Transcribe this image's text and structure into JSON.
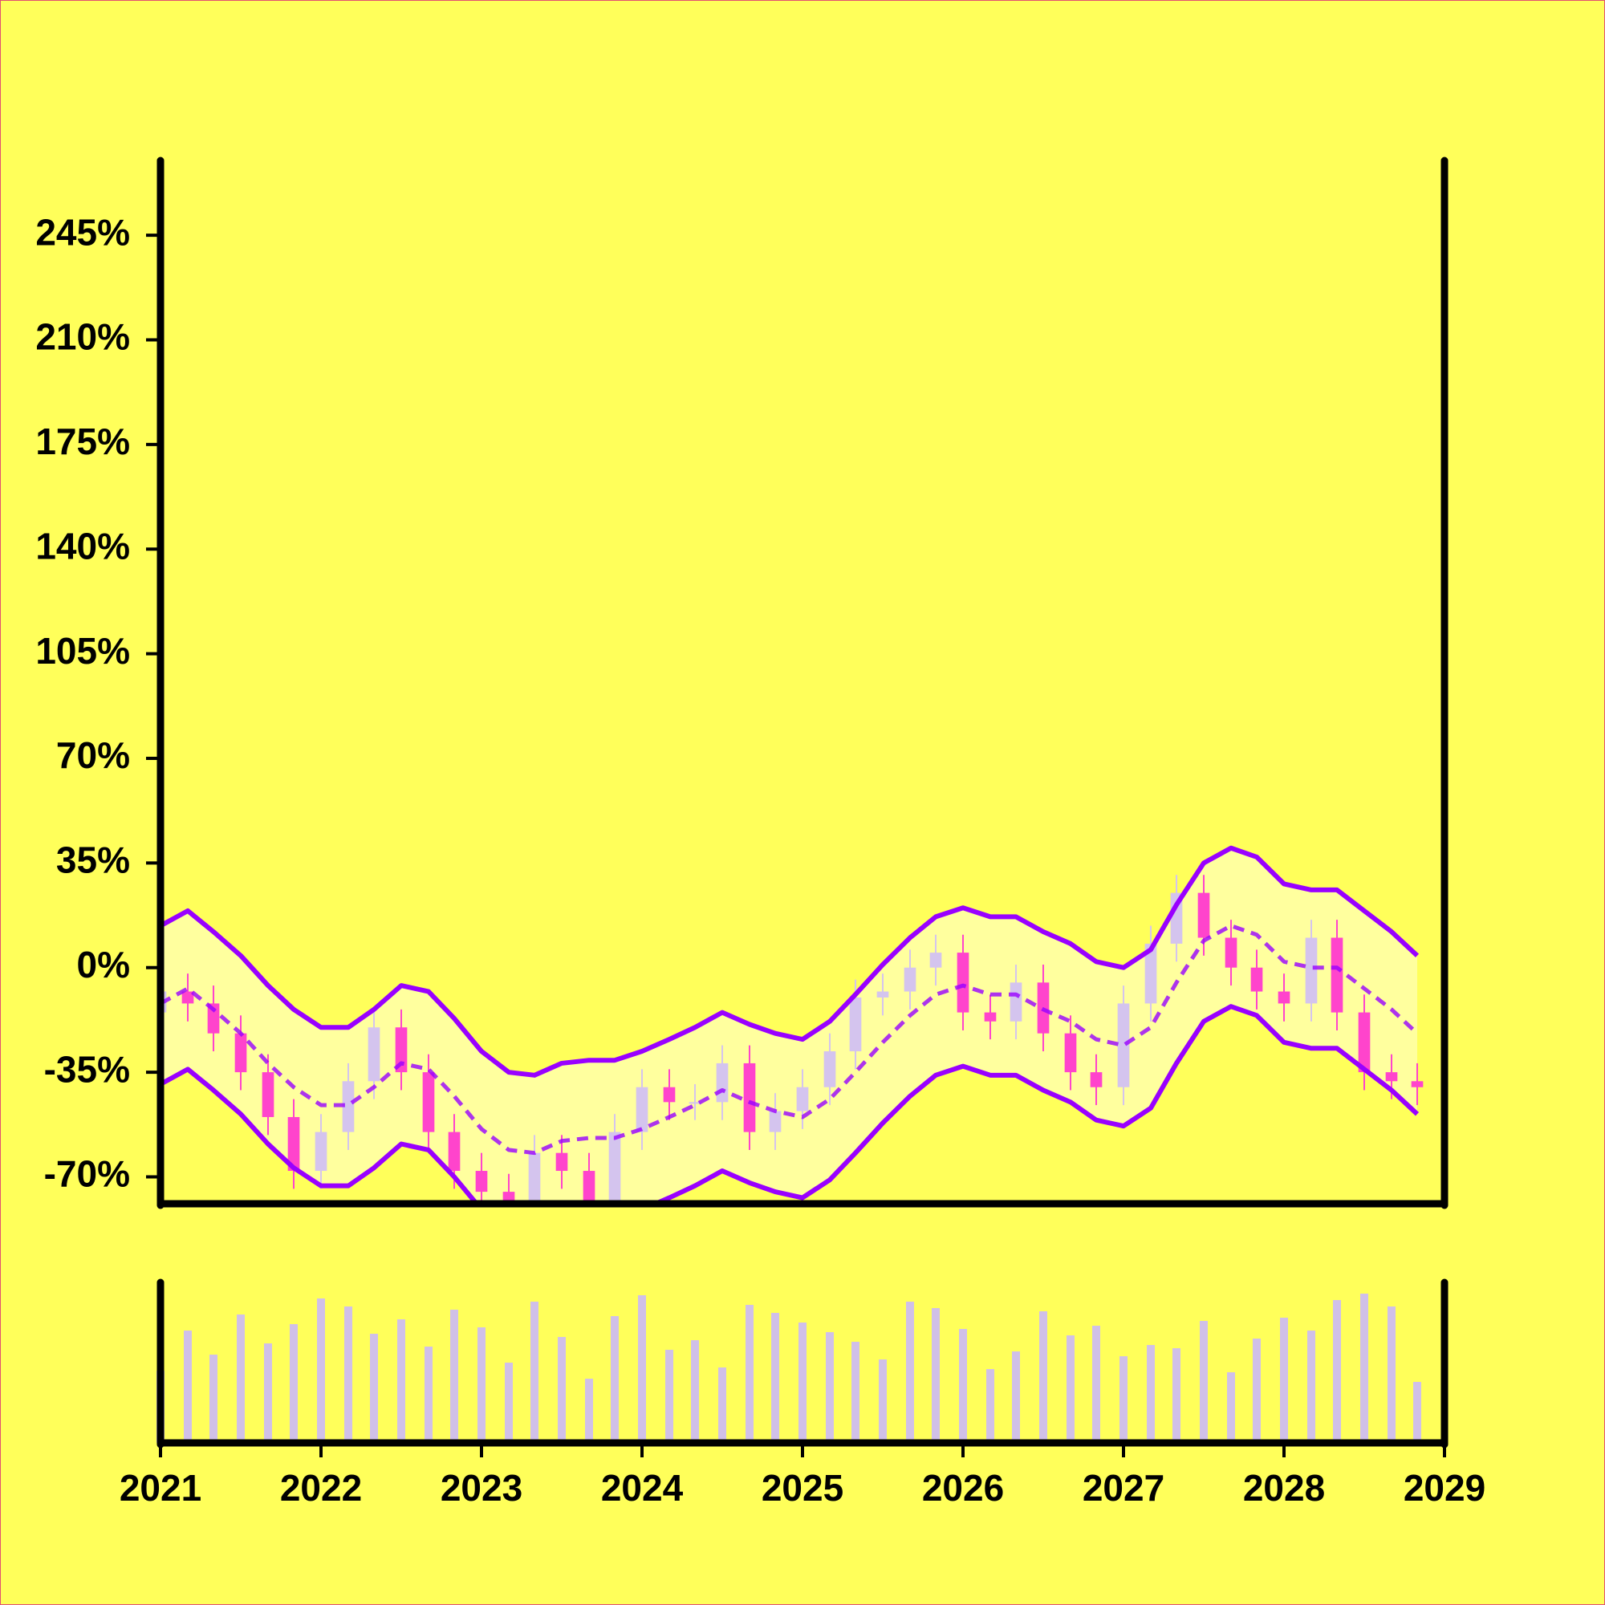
{
  "chart_data": {
    "type": "candlestick",
    "x": [
      2021,
      2021.17,
      2021.33,
      2021.5,
      2021.67,
      2021.83,
      2022,
      2022.17,
      2022.33,
      2022.5,
      2022.67,
      2022.83,
      2023,
      2023.17,
      2023.33,
      2023.5,
      2023.67,
      2023.83,
      2024,
      2024.17,
      2024.33,
      2024.5,
      2024.67,
      2024.83,
      2025,
      2025.17,
      2025.33,
      2025.5,
      2025.67,
      2025.83,
      2026,
      2026.17,
      2026.33,
      2026.5,
      2026.67,
      2026.83,
      2027,
      2027.17,
      2027.33,
      2027.5,
      2027.67,
      2027.83,
      2028,
      2028.17,
      2028.33,
      2028.5,
      2028.67,
      2028.83
    ],
    "open": [
      -15,
      -8,
      -12,
      -22,
      -35,
      -50,
      -68,
      -55,
      -38,
      -20,
      -35,
      -55,
      -68,
      -75,
      -82,
      -62,
      -68,
      -78,
      -55,
      -40,
      -45,
      -45,
      -32,
      -55,
      -48,
      -40,
      -28,
      -10,
      -8,
      0,
      5,
      -15,
      -18,
      -5,
      -22,
      -35,
      -40,
      -12,
      8,
      25,
      10,
      0,
      -8,
      -12,
      10,
      -15,
      -35,
      -38
    ],
    "high": [
      -2,
      -2,
      -6,
      -16,
      -29,
      -44,
      -49,
      -32,
      -14,
      -14,
      -29,
      -49,
      -62,
      -69,
      -56,
      -56,
      -62,
      -49,
      -34,
      -34,
      -39,
      -26,
      -26,
      -42,
      -34,
      -22,
      -4,
      -2,
      6,
      11,
      11,
      -9,
      1,
      1,
      -16,
      -29,
      -6,
      14,
      31,
      31,
      16,
      6,
      -2,
      16,
      16,
      -9,
      -29,
      -32
    ],
    "low": [
      -21,
      -18,
      -28,
      -41,
      -56,
      -74,
      -74,
      -61,
      -44,
      -41,
      -61,
      -74,
      -81,
      -88,
      -88,
      -74,
      -84,
      -84,
      -61,
      -51,
      -51,
      -51,
      -61,
      -61,
      -54,
      -46,
      -34,
      -16,
      -14,
      -6,
      -21,
      -24,
      -24,
      -28,
      -41,
      -46,
      -46,
      -18,
      2,
      4,
      -6,
      -14,
      -18,
      -18,
      -21,
      -41,
      -44,
      -46
    ],
    "close": [
      -8,
      -12,
      -22,
      -35,
      -50,
      -68,
      -55,
      -38,
      -20,
      -35,
      -55,
      -68,
      -75,
      -82,
      -62,
      -68,
      -78,
      -55,
      -40,
      -45,
      -45,
      -32,
      -55,
      -48,
      -40,
      -28,
      -10,
      -8,
      0,
      5,
      -15,
      -18,
      -5,
      -22,
      -35,
      -40,
      -12,
      8,
      25,
      10,
      0,
      -8,
      -12,
      10,
      -15,
      -35,
      -38,
      -40
    ],
    "volume": [
      45,
      70,
      55,
      80,
      62,
      74,
      90,
      85,
      68,
      77,
      60,
      83,
      72,
      50,
      88,
      66,
      40,
      79,
      92,
      58,
      64,
      47,
      86,
      81,
      75,
      69,
      63,
      52,
      88,
      84,
      71,
      46,
      57,
      82,
      67,
      73,
      54,
      61,
      59,
      76,
      44,
      65,
      78,
      70,
      89,
      93,
      85,
      38
    ],
    "bands": {
      "color": "#9900ff",
      "fill": "#ffff9e",
      "upper": [
        14,
        19,
        12,
        4,
        -6,
        -14,
        -20,
        -20,
        -14,
        -6,
        -8,
        -17,
        -28,
        -35,
        -36,
        -32,
        -31,
        -31,
        -28,
        -24,
        -20,
        -15,
        -19,
        -22,
        -24,
        -18,
        -9,
        1,
        10,
        17,
        20,
        17,
        17,
        12,
        8,
        2,
        0,
        6,
        21,
        35,
        40,
        37,
        28,
        26,
        26,
        19,
        12,
        4
      ],
      "middle": [
        -12,
        -7,
        -14,
        -22,
        -32,
        -40,
        -46,
        -46,
        -40,
        -32,
        -34,
        -43,
        -54,
        -61,
        -62,
        -58,
        -57,
        -57,
        -54,
        -50,
        -46,
        -41,
        -45,
        -48,
        -50,
        -44,
        -35,
        -25,
        -16,
        -9,
        -6,
        -9,
        -9,
        -14,
        -18,
        -24,
        -26,
        -20,
        -5,
        9,
        14,
        11,
        2,
        0,
        0,
        -7,
        -14,
        -22
      ],
      "lower": [
        -39,
        -34,
        -41,
        -49,
        -59,
        -67,
        -73,
        -73,
        -67,
        -59,
        -61,
        -70,
        -81,
        -88,
        -89,
        -85,
        -84,
        -84,
        -81,
        -77,
        -73,
        -68,
        -72,
        -75,
        -77,
        -71,
        -62,
        -52,
        -43,
        -36,
        -33,
        -36,
        -36,
        -41,
        -45,
        -51,
        -53,
        -47,
        -32,
        -18,
        -13,
        -16,
        -25,
        -27,
        -27,
        -34,
        -41,
        -49
      ]
    },
    "up_color": "#d4c4ee",
    "down_color": "#ff44cc",
    "volume_color": "#d0c0e8",
    "xlim": [
      2021,
      2029
    ],
    "xticks": [
      2021,
      2022,
      2023,
      2024,
      2025,
      2026,
      2027,
      2028,
      2029
    ],
    "ylim": [
      -79,
      270
    ],
    "yticks": [
      {
        "value": -70,
        "label": "-70%"
      },
      {
        "value": -35,
        "label": "-35%"
      },
      {
        "value": 0,
        "label": "0%"
      },
      {
        "value": 35,
        "label": "35%"
      },
      {
        "value": 70,
        "label": "70%"
      },
      {
        "value": 105,
        "label": "105%"
      },
      {
        "value": 140,
        "label": "140%"
      },
      {
        "value": 175,
        "label": "175%"
      },
      {
        "value": 210,
        "label": "210%"
      },
      {
        "value": 245,
        "label": "245%"
      }
    ],
    "volume_ylim": [
      0,
      100
    ]
  }
}
